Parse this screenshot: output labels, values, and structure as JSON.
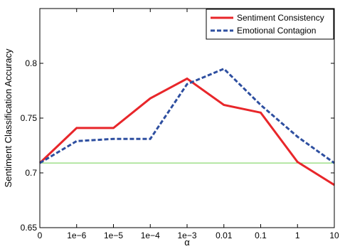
{
  "chart_data": {
    "type": "line",
    "title": "",
    "xlabel": "α",
    "ylabel": "Sentiment Classification Accuracy",
    "categories": [
      "0",
      "1e−6",
      "1e−5",
      "1e−4",
      "1e−3",
      "0.01",
      "0.1",
      "1",
      "10"
    ],
    "ylim": [
      0.65,
      0.85
    ],
    "yticks": [
      "0.65",
      "0.7",
      "0.75",
      "0.8"
    ],
    "ytick_values": [
      0.65,
      0.7,
      0.75,
      0.8
    ],
    "grid": false,
    "legend_position": "top-right",
    "series": [
      {
        "name": "Sentiment Consistency",
        "color": "#e8262a",
        "style": "solid",
        "values": [
          0.709,
          0.741,
          0.741,
          0.768,
          0.786,
          0.762,
          0.755,
          0.71,
          0.689
        ]
      },
      {
        "name": "Emotional Contagion",
        "color": "#2e4fa0",
        "style": "dashed",
        "values": [
          0.709,
          0.729,
          0.731,
          0.731,
          0.781,
          0.795,
          0.762,
          0.733,
          0.709
        ]
      }
    ],
    "reference_line": {
      "value": 0.709,
      "color": "#6fcf4f"
    }
  }
}
